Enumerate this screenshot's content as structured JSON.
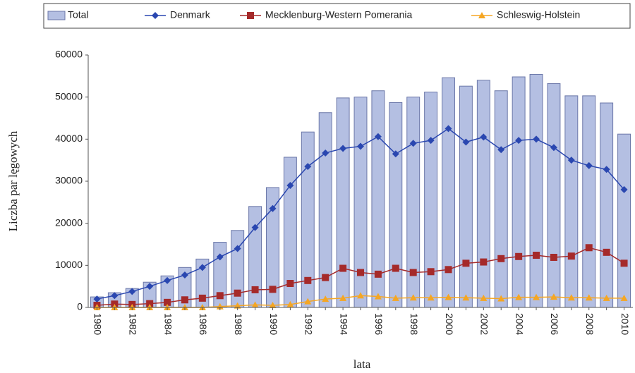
{
  "chart_data": {
    "type": "bar",
    "xlabel": "lata",
    "ylabel": "Liczba par lęgowych",
    "categories": [
      "1980",
      null,
      "1982",
      null,
      "1984",
      null,
      "1986",
      null,
      "1988",
      null,
      "1990",
      null,
      "1992",
      null,
      "1994",
      null,
      "1996",
      null,
      "1998",
      null,
      "2000",
      null,
      "2002",
      null,
      "2004",
      null,
      "2006",
      null,
      "2008",
      null,
      "2010"
    ],
    "ylim": [
      0,
      60000
    ],
    "yticks": [
      0,
      10000,
      20000,
      30000,
      40000,
      50000,
      60000
    ],
    "grid": false,
    "legend": "top",
    "series": [
      {
        "name": "Total",
        "type": "bar",
        "color": "#b4bfe2",
        "values": [
          2500,
          3500,
          4500,
          6000,
          7500,
          9500,
          11500,
          15500,
          18300,
          24000,
          28500,
          35700,
          41700,
          46300,
          49800,
          50000,
          51500,
          48700,
          50000,
          51200,
          54600,
          52600,
          54000,
          51500,
          54800,
          55400,
          53200,
          50300,
          50300,
          48600,
          41200
        ]
      },
      {
        "name": "Denmark",
        "type": "line",
        "marker": "diamond",
        "color": "#2a47b0",
        "values": [
          2000,
          2800,
          3800,
          5000,
          6400,
          7700,
          9500,
          12000,
          14000,
          19000,
          23500,
          29000,
          33500,
          36700,
          37800,
          38300,
          40600,
          36500,
          39000,
          39700,
          42500,
          39300,
          40500,
          37500,
          39700,
          40000,
          38000,
          35000,
          33700,
          32800,
          28000
        ]
      },
      {
        "name": "Mecklenburg-Western Pomerania",
        "type": "line",
        "marker": "square",
        "color": "#a52a2a",
        "values": [
          500,
          800,
          700,
          900,
          1200,
          1800,
          2200,
          2800,
          3400,
          4200,
          4300,
          5700,
          6400,
          7100,
          9300,
          8300,
          7900,
          9300,
          8300,
          8500,
          9000,
          10500,
          10800,
          11600,
          12100,
          12400,
          11900,
          12200,
          14200,
          13100,
          10500
        ]
      },
      {
        "name": "Schleswig-Holstein",
        "type": "line",
        "marker": "triangle",
        "color": "#f5a623",
        "values": [
          0,
          0,
          0,
          0,
          0,
          0,
          0,
          200,
          400,
          600,
          500,
          700,
          1400,
          2000,
          2200,
          2800,
          2600,
          2200,
          2300,
          2300,
          2400,
          2300,
          2200,
          2100,
          2400,
          2400,
          2500,
          2300,
          2300,
          2200,
          2200
        ]
      }
    ]
  }
}
